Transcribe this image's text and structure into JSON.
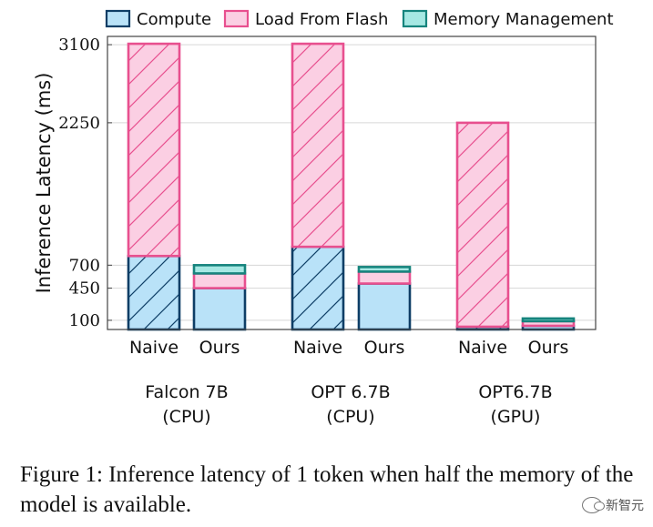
{
  "chart_data": {
    "type": "stacked-bar",
    "ylabel": "Inference Latency (ms)",
    "ylim": [
      0,
      3190
    ],
    "yticks": [
      100,
      450,
      700,
      2250,
      3100
    ],
    "grid": true,
    "legend_position": "top",
    "series": [
      {
        "name": "Compute",
        "fill": "#b9e2f8",
        "stroke": "#0e3e66",
        "hatch": true
      },
      {
        "name": "Load From Flash",
        "fill": "#fbcfe3",
        "stroke": "#e8508f",
        "hatch": true
      },
      {
        "name": "Memory Management",
        "fill": "#a6e8e3",
        "stroke": "#16847d",
        "hatch": false
      }
    ],
    "groups": [
      {
        "label_line1": "Falcon 7B",
        "label_line2": "(CPU)",
        "bars": [
          {
            "label": "Naive",
            "hatched": true,
            "values": {
              "Compute": 800,
              "Load From Flash": 2310,
              "Memory Management": 0
            }
          },
          {
            "label": "Ours",
            "hatched": false,
            "values": {
              "Compute": 450,
              "Load From Flash": 160,
              "Memory Management": 90
            }
          }
        ]
      },
      {
        "label_line1": "OPT 6.7B",
        "label_line2": "(CPU)",
        "bars": [
          {
            "label": "Naive",
            "hatched": true,
            "values": {
              "Compute": 900,
              "Load From Flash": 2210,
              "Memory Management": 0
            }
          },
          {
            "label": "Ours",
            "hatched": false,
            "values": {
              "Compute": 500,
              "Load From Flash": 130,
              "Memory Management": 50
            }
          }
        ]
      },
      {
        "label_line1": "OPT6.7B",
        "label_line2": "(GPU)",
        "bars": [
          {
            "label": "Naive",
            "hatched": true,
            "values": {
              "Compute": 30,
              "Load From Flash": 2220,
              "Memory Management": 0
            }
          },
          {
            "label": "Ours",
            "hatched": false,
            "values": {
              "Compute": 40,
              "Load From Flash": 50,
              "Memory Management": 30
            }
          }
        ]
      }
    ]
  },
  "caption": "Figure 1: Inference latency of 1 token when half the memory of the model is available.",
  "watermark": "新智元"
}
